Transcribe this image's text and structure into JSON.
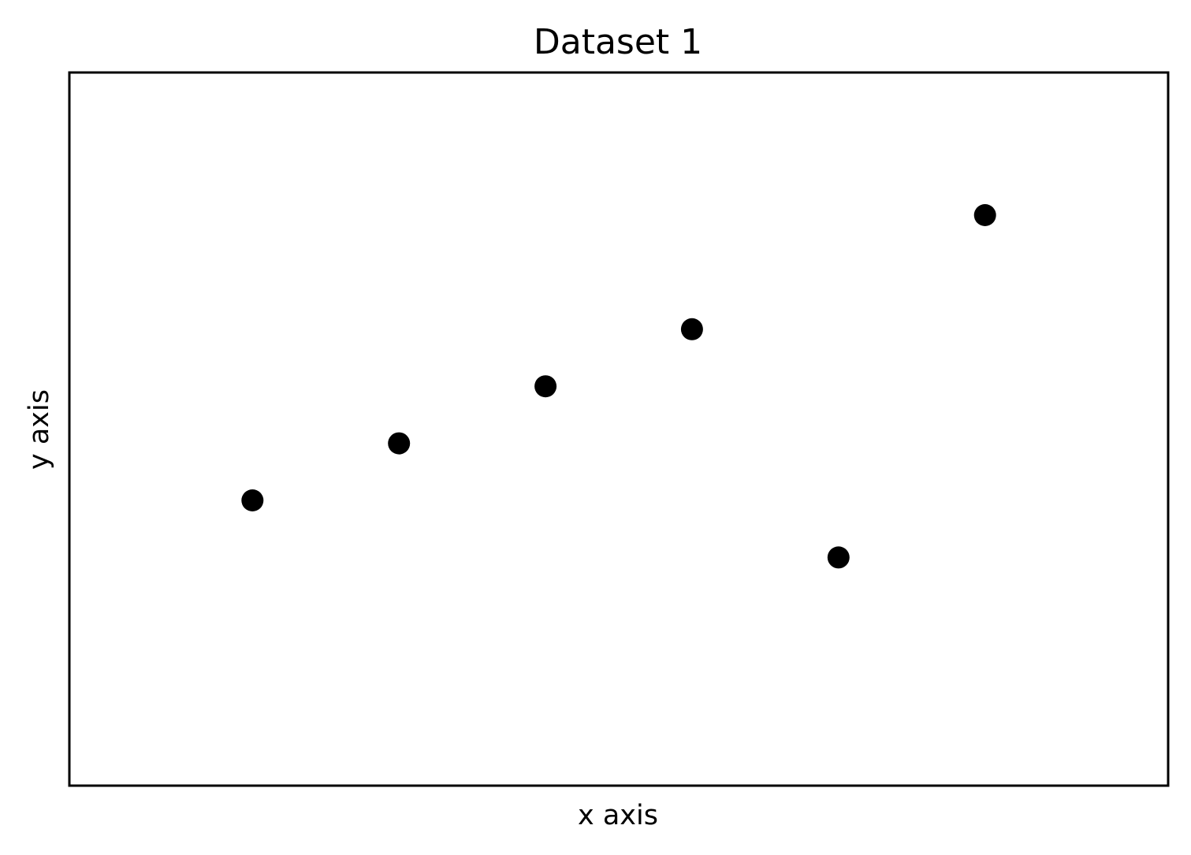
{
  "chart_data": {
    "type": "scatter",
    "title": "Dataset 1",
    "xlabel": "x axis",
    "ylabel": "y axis",
    "x_ticks_shown": false,
    "y_ticks_shown": false,
    "grid": false,
    "legend": "none",
    "xlim": [
      -0.25,
      7.25
    ],
    "ylim": [
      0,
      12.5
    ],
    "series": [
      {
        "marker": "circle",
        "color": "#000000",
        "points": [
          {
            "x": 1,
            "y": 5
          },
          {
            "x": 2,
            "y": 6
          },
          {
            "x": 3,
            "y": 7
          },
          {
            "x": 4,
            "y": 8
          },
          {
            "x": 5,
            "y": 4
          },
          {
            "x": 6,
            "y": 10
          }
        ]
      }
    ]
  }
}
